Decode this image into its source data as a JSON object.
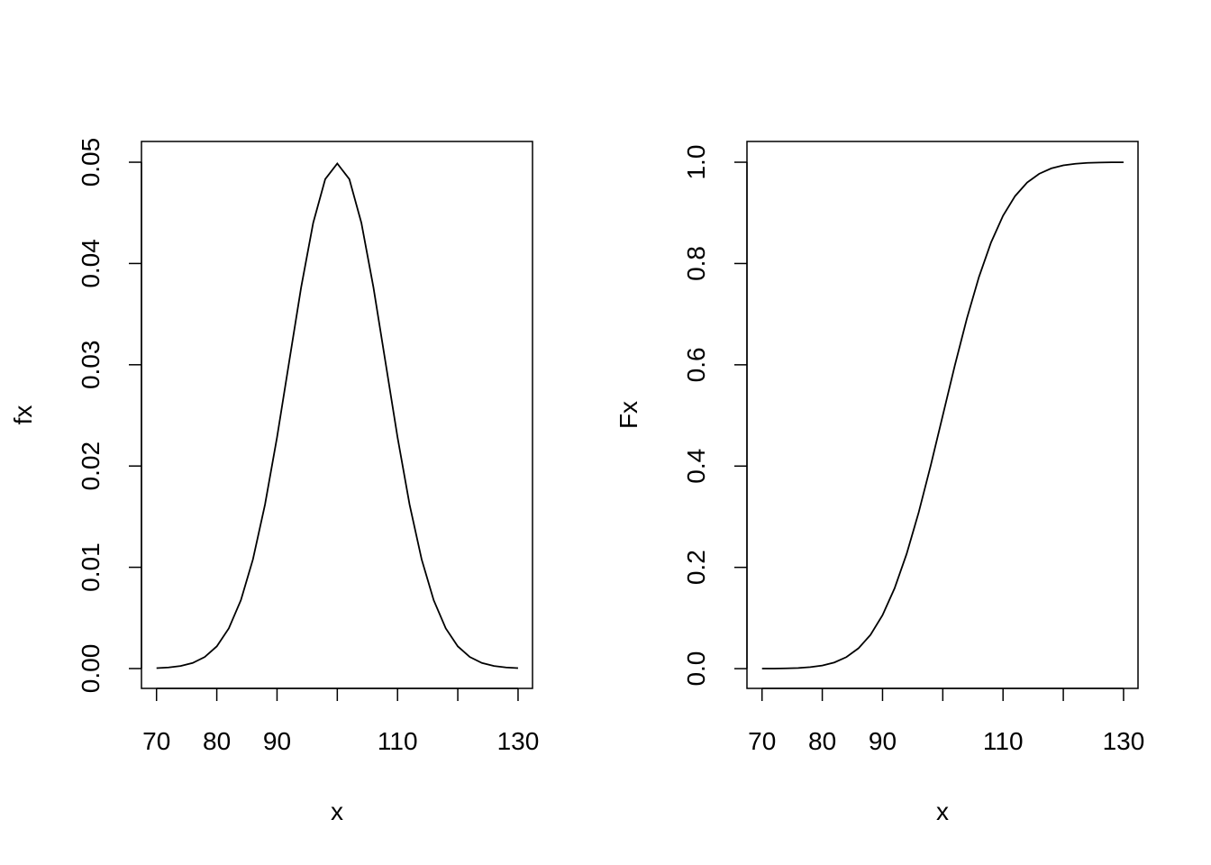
{
  "chart_data": [
    {
      "type": "line",
      "xlabel": "x",
      "ylabel": "fx",
      "color": "#000000",
      "x": [
        70,
        72,
        74,
        76,
        78,
        80,
        82,
        84,
        86,
        88,
        90,
        92,
        94,
        96,
        98,
        100,
        102,
        104,
        106,
        108,
        110,
        112,
        114,
        116,
        118,
        120,
        122,
        124,
        126,
        128,
        130
      ],
      "values": [
        4e-05,
        0.00011,
        0.00025,
        0.00055,
        0.00114,
        0.00219,
        0.00397,
        0.00675,
        0.01078,
        0.01619,
        0.02283,
        0.03025,
        0.03764,
        0.04401,
        0.04833,
        0.04987,
        0.04833,
        0.04401,
        0.03764,
        0.03025,
        0.02283,
        0.01619,
        0.01078,
        0.00675,
        0.00397,
        0.00219,
        0.00114,
        0.00055,
        0.00025,
        0.00011,
        4e-05
      ],
      "xlim": [
        67.5,
        132.4
      ],
      "ylim": [
        -0.00196,
        0.05205
      ],
      "xticks": [
        70,
        80,
        90,
        {
          "value": 100,
          "label": null
        },
        110,
        {
          "value": 120,
          "label": null
        },
        130
      ],
      "yticks": [
        {
          "value": 0,
          "label": "0.00"
        },
        0.01,
        0.02,
        0.03,
        0.04,
        0.05
      ]
    },
    {
      "type": "line",
      "xlabel": "x",
      "ylabel": "Fx",
      "color": "#000000",
      "x": [
        70,
        72,
        74,
        76,
        78,
        80,
        82,
        84,
        86,
        88,
        90,
        92,
        94,
        96,
        98,
        100,
        102,
        104,
        106,
        108,
        110,
        112,
        114,
        116,
        118,
        120,
        122,
        124,
        126,
        128,
        130
      ],
      "values": [
        0.0001,
        0.0002,
        0.0006,
        0.0013,
        0.003,
        0.0062,
        0.0122,
        0.0228,
        0.0401,
        0.0668,
        0.1056,
        0.1587,
        0.2266,
        0.3085,
        0.4013,
        0.5,
        0.5987,
        0.6915,
        0.7734,
        0.8413,
        0.8944,
        0.9332,
        0.9599,
        0.9772,
        0.9878,
        0.9938,
        0.997,
        0.9987,
        0.9994,
        0.9998,
        0.9999
      ],
      "xlim": [
        67.5,
        132.4
      ],
      "ylim": [
        -0.039,
        1.041
      ],
      "xticks": [
        70,
        80,
        90,
        {
          "value": 100,
          "label": null
        },
        110,
        {
          "value": 120,
          "label": null
        },
        130
      ],
      "yticks": [
        {
          "value": 0,
          "label": "0.0"
        },
        0.2,
        0.4,
        0.6,
        0.8,
        {
          "value": 1,
          "label": "1.0"
        }
      ]
    }
  ]
}
